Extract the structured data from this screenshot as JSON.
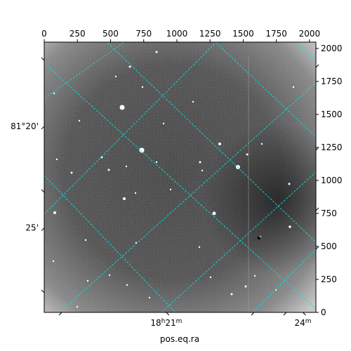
{
  "image": {
    "kind": "astronomical-grayscale-image",
    "pixel_range": [
      0,
      2048
    ],
    "grid_color": "#00e5e5"
  },
  "axes": {
    "top_ticks": [
      {
        "label": "0",
        "value": 0
      },
      {
        "label": "250",
        "value": 250
      },
      {
        "label": "500",
        "value": 500
      },
      {
        "label": "750",
        "value": 750
      },
      {
        "label": "1000",
        "value": 1000
      },
      {
        "label": "1250",
        "value": 1250
      },
      {
        "label": "1500",
        "value": 1500
      },
      {
        "label": "1750",
        "value": 1750
      },
      {
        "label": "2000",
        "value": 2000
      }
    ],
    "right_ticks": [
      {
        "label": "0",
        "value": 0
      },
      {
        "label": "250",
        "value": 250
      },
      {
        "label": "500",
        "value": 500
      },
      {
        "label": "750",
        "value": 750
      },
      {
        "label": "1000",
        "value": 1000
      },
      {
        "label": "1250",
        "value": 1250
      },
      {
        "label": "1500",
        "value": 1500
      },
      {
        "label": "1750",
        "value": 1750
      },
      {
        "label": "2000",
        "value": 2000
      }
    ],
    "left_labels": [
      {
        "label": "81°20'",
        "value": 1410
      },
      {
        "label": "25'",
        "value": 640
      }
    ],
    "bottom_labels": [
      {
        "label_main": "18",
        "label_h": "h",
        "label_mid": "21",
        "label_m": "m",
        "value": 920
      },
      {
        "label_main": "24",
        "label_h": "",
        "label_mid": "",
        "label_m": "m",
        "value": 1950
      }
    ],
    "xlabel": "pos.eq.ra"
  }
}
